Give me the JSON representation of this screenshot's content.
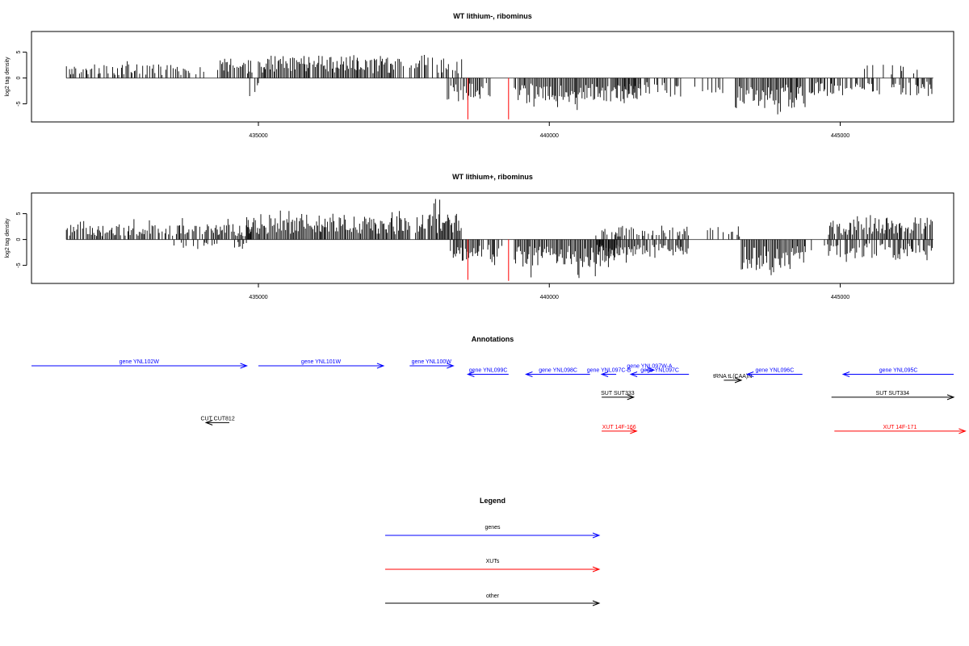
{
  "charts": [
    {
      "title": "WT lithium-, ribominus",
      "ylabel": "log2 tag density",
      "xlim": [
        431100,
        446950
      ],
      "ylim": [
        -8.5,
        9
      ],
      "xticks": [
        435000,
        440000,
        445000
      ],
      "xtick_labels": [
        "435000",
        "440000",
        "445000"
      ],
      "yticks": [
        -5,
        0,
        5
      ],
      "ytick_labels": [
        "-5",
        "0",
        "5"
      ],
      "seed": 17,
      "red_bars": [
        {
          "x": 438600,
          "y": -8
        },
        {
          "x": 439300,
          "y": -8
        }
      ]
    },
    {
      "title": "WT lithium+, ribominus",
      "ylabel": "log2 tag density",
      "xlim": [
        431100,
        446950
      ],
      "ylim": [
        -8.5,
        9
      ],
      "xticks": [
        435000,
        440000,
        445000
      ],
      "xtick_labels": [
        "435000",
        "440000",
        "445000"
      ],
      "yticks": [
        -5,
        0,
        5
      ],
      "ytick_labels": [
        "-5",
        "0",
        "5"
      ],
      "seed": 91,
      "red_bars": [
        {
          "x": 438600,
          "y": -7.8
        },
        {
          "x": 439300,
          "y": -8
        }
      ]
    }
  ],
  "chart_data": [
    {
      "type": "bar",
      "title": "WT lithium-, ribominus",
      "ylabel": "log2 tag density",
      "ylim": [
        -8.5,
        9
      ],
      "segments": [
        {
          "start": 431700,
          "end": 434100,
          "sign": 1,
          "density": 0.55,
          "mean": 1.6,
          "max": 4.0
        },
        {
          "start": 434300,
          "end": 434900,
          "sign": 1,
          "density": 0.85,
          "mean": 2.4,
          "max": 4.2
        },
        {
          "start": 434850,
          "end": 435000,
          "sign": -1,
          "density": 0.3,
          "mean": 2.5,
          "max": 3.5
        },
        {
          "start": 435000,
          "end": 436700,
          "sign": 1,
          "density": 0.95,
          "mean": 2.6,
          "max": 4.5
        },
        {
          "start": 436700,
          "end": 437500,
          "sign": 1,
          "density": 0.9,
          "mean": 2.5,
          "max": 4.8
        },
        {
          "start": 437600,
          "end": 438500,
          "sign": 1,
          "density": 0.75,
          "mean": 2.4,
          "max": 5.0
        },
        {
          "start": 438200,
          "end": 438650,
          "sign": -1,
          "density": 0.6,
          "mean": 2.8,
          "max": 4.5
        },
        {
          "start": 438650,
          "end": 439000,
          "sign": -1,
          "density": 0.85,
          "mean": 2.5,
          "max": 4.0
        },
        {
          "start": 439400,
          "end": 441600,
          "sign": -1,
          "density": 0.95,
          "mean": 3.0,
          "max": 6.3
        },
        {
          "start": 441300,
          "end": 442400,
          "sign": -1,
          "density": 0.5,
          "mean": 2.2,
          "max": 3.8
        },
        {
          "start": 442500,
          "end": 443000,
          "sign": -1,
          "density": 0.35,
          "mean": 2.0,
          "max": 3.0
        },
        {
          "start": 443200,
          "end": 444400,
          "sign": -1,
          "density": 0.95,
          "mean": 3.6,
          "max": 7.5
        },
        {
          "start": 444400,
          "end": 446600,
          "sign": -1,
          "density": 0.6,
          "mean": 2.0,
          "max": 3.8
        },
        {
          "start": 445300,
          "end": 446500,
          "sign": 1,
          "density": 0.15,
          "mean": 1.6,
          "max": 3.5
        }
      ]
    },
    {
      "type": "bar",
      "title": "WT lithium+, ribominus",
      "ylabel": "log2 tag density",
      "ylim": [
        -8.5,
        9
      ],
      "segments": [
        {
          "start": 431700,
          "end": 434900,
          "sign": 1,
          "density": 0.8,
          "mean": 1.8,
          "max": 4.2
        },
        {
          "start": 433500,
          "end": 434800,
          "sign": -1,
          "density": 0.2,
          "mean": 1.2,
          "max": 2.5
        },
        {
          "start": 434800,
          "end": 437600,
          "sign": 1,
          "density": 1.0,
          "mean": 2.8,
          "max": 5.8
        },
        {
          "start": 437700,
          "end": 438500,
          "sign": 1,
          "density": 0.95,
          "mean": 3.0,
          "max": 8.2
        },
        {
          "start": 438300,
          "end": 439200,
          "sign": -1,
          "density": 0.7,
          "mean": 2.5,
          "max": 5.0
        },
        {
          "start": 439400,
          "end": 441200,
          "sign": -1,
          "density": 1.0,
          "mean": 3.4,
          "max": 7.5
        },
        {
          "start": 440800,
          "end": 442400,
          "sign": 1,
          "density": 0.5,
          "mean": 1.5,
          "max": 2.8
        },
        {
          "start": 440800,
          "end": 442400,
          "sign": -1,
          "density": 0.8,
          "mean": 2.2,
          "max": 4.5
        },
        {
          "start": 442700,
          "end": 443300,
          "sign": 1,
          "density": 0.4,
          "mean": 1.2,
          "max": 2.6
        },
        {
          "start": 443300,
          "end": 444400,
          "sign": -1,
          "density": 1.0,
          "mean": 3.6,
          "max": 7.2
        },
        {
          "start": 444400,
          "end": 444800,
          "sign": -1,
          "density": 0.3,
          "mean": 1.5,
          "max": 3.0
        },
        {
          "start": 444800,
          "end": 446600,
          "sign": 1,
          "density": 0.9,
          "mean": 2.6,
          "max": 4.8
        },
        {
          "start": 444800,
          "end": 446600,
          "sign": -1,
          "density": 0.75,
          "mean": 2.2,
          "max": 4.5
        }
      ]
    }
  ],
  "annotations": {
    "title": "Annotations",
    "xlim": [
      431100,
      446950
    ],
    "features": [
      {
        "label": "gene YNL102W",
        "start": 431100,
        "end": 434800,
        "strand": "+",
        "row": 0,
        "color": "#0000ff"
      },
      {
        "label": "gene YNL101W",
        "start": 435000,
        "end": 437150,
        "strand": "+",
        "row": 0,
        "color": "#0000ff"
      },
      {
        "label": "gene YNL100W",
        "start": 437600,
        "end": 438350,
        "strand": "+",
        "row": 0,
        "color": "#0000ff"
      },
      {
        "label": "gene YNL099C",
        "start": 438600,
        "end": 439300,
        "strand": "-",
        "row": 1,
        "color": "#0000ff"
      },
      {
        "label": "gene YNL098C",
        "start": 439600,
        "end": 440700,
        "strand": "-",
        "row": 1,
        "color": "#0000ff"
      },
      {
        "label": "gene YNL097C-B",
        "start": 440900,
        "end": 441150,
        "strand": "-",
        "row": 1,
        "color": "#0000ff"
      },
      {
        "label": "gene YNL097W-A",
        "start": 441650,
        "end": 441800,
        "strand": "+",
        "row": 0.5,
        "color": "#0000ff"
      },
      {
        "label": "gene YNL097C",
        "start": 441400,
        "end": 442400,
        "strand": "-",
        "row": 1,
        "color": "#0000ff"
      },
      {
        "label": "tRNA tL(CAA)N",
        "start": 443000,
        "end": 443300,
        "strand": "+",
        "row": 1.7,
        "color": "#000000"
      },
      {
        "label": "gene YNL096C",
        "start": 443400,
        "end": 444350,
        "strand": "-",
        "row": 1,
        "color": "#0000ff"
      },
      {
        "label": "gene YNL095C",
        "start": 445050,
        "end": 446950,
        "strand": "-",
        "row": 1,
        "color": "#0000ff"
      },
      {
        "label": "SUT SUT333",
        "start": 440900,
        "end": 441450,
        "strand": "+",
        "row": 3.7,
        "color": "#000000"
      },
      {
        "label": "SUT SUT334",
        "start": 444850,
        "end": 446950,
        "strand": "+",
        "row": 3.7,
        "color": "#000000"
      },
      {
        "label": "CUT CUT812",
        "start": 434100,
        "end": 434500,
        "strand": "-",
        "row": 6.7,
        "color": "#000000"
      },
      {
        "label": "XUT 14F-166",
        "start": 440900,
        "end": 441500,
        "strand": "+",
        "row": 7.7,
        "color": "#ff0000"
      },
      {
        "label": "XUT 14F-171",
        "start": 444900,
        "end": 447150,
        "strand": "+",
        "row": 7.7,
        "color": "#ff0000"
      }
    ]
  },
  "legend": {
    "title": "Legend",
    "items": [
      {
        "label": "genes",
        "color": "#0000ff"
      },
      {
        "label": "XUTs",
        "color": "#ff0000"
      },
      {
        "label": "other",
        "color": "#000000"
      }
    ]
  }
}
